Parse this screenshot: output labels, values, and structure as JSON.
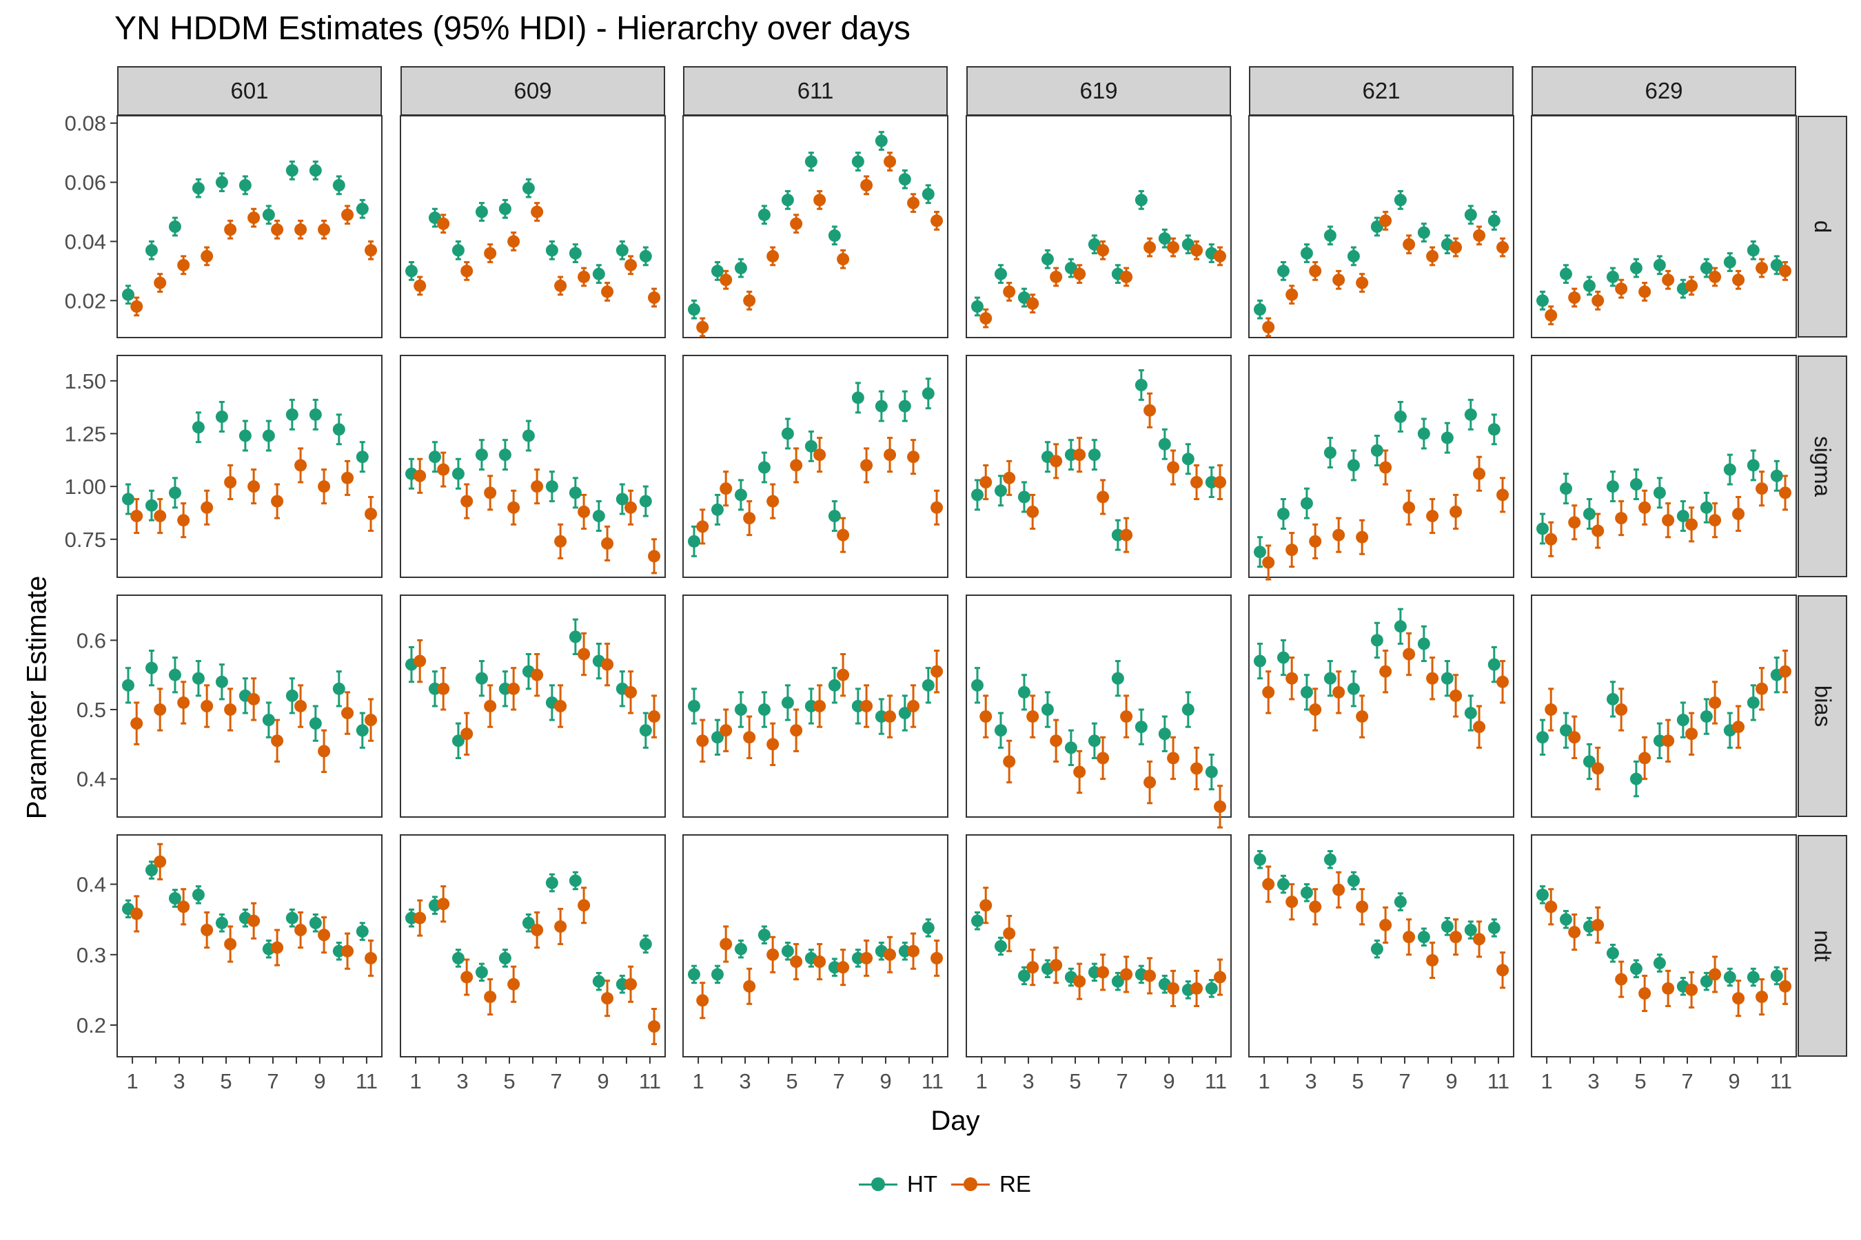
{
  "chart_data": {
    "type": "scatter",
    "title": "YN HDDM Estimates (95% HDI) - Hierarchy over days",
    "xlabel": "Day",
    "ylabel": "Parameter Estimate",
    "subjects": [
      "601",
      "609",
      "611",
      "619",
      "621",
      "629"
    ],
    "parameters": [
      "d",
      "sigma",
      "bias",
      "ndt"
    ],
    "x": [
      1,
      2,
      3,
      4,
      5,
      6,
      7,
      8,
      9,
      10,
      11
    ],
    "x_ticks": [
      1,
      3,
      5,
      7,
      9,
      11
    ],
    "x_range": [
      0.35,
      11.65
    ],
    "y_ranges": {
      "d": [
        0.0075,
        0.0825
      ],
      "sigma": [
        0.57,
        1.62
      ],
      "bias": [
        0.345,
        0.665
      ],
      "ndt": [
        0.155,
        0.47
      ]
    },
    "y_ticks": {
      "d": [
        "0.02",
        "0.04",
        "0.06",
        "0.08"
      ],
      "sigma": [
        "0.75",
        "1.00",
        "1.25",
        "1.50"
      ],
      "bias": [
        "0.4",
        "0.5",
        "0.6"
      ],
      "ndt": [
        "0.2",
        "0.3",
        "0.4"
      ]
    },
    "errorbar_halfwidth": {
      "d": [
        0.003,
        0.003
      ],
      "sigma": [
        0.07,
        0.08
      ],
      "bias": [
        0.025,
        0.03
      ],
      "ndt": [
        0.012,
        0.025
      ]
    },
    "grid": false,
    "legend_position": "bottom",
    "series": [
      {
        "name": "HT",
        "color": "#1b9e77",
        "values": {
          "601": {
            "d": [
              0.022,
              0.037,
              0.045,
              0.058,
              0.06,
              0.059,
              0.049,
              0.064,
              0.064,
              0.059,
              0.051
            ],
            "sigma": [
              0.94,
              0.91,
              0.97,
              1.28,
              1.33,
              1.24,
              1.24,
              1.34,
              1.34,
              1.27,
              1.14
            ],
            "bias": [
              0.535,
              0.56,
              0.55,
              0.545,
              0.54,
              0.52,
              0.485,
              0.52,
              0.48,
              0.53,
              0.47
            ],
            "ndt": [
              0.365,
              0.42,
              0.38,
              0.385,
              0.345,
              0.352,
              0.308,
              0.352,
              0.345,
              0.305,
              0.333
            ]
          },
          "609": {
            "d": [
              0.03,
              0.048,
              0.037,
              0.05,
              0.051,
              0.058,
              0.037,
              0.036,
              0.029,
              0.037,
              0.035
            ],
            "sigma": [
              1.06,
              1.14,
              1.06,
              1.15,
              1.15,
              1.24,
              1.0,
              0.97,
              0.86,
              0.94,
              0.93
            ],
            "bias": [
              0.565,
              0.53,
              0.455,
              0.545,
              0.53,
              0.555,
              0.51,
              0.605,
              0.57,
              0.53,
              0.47
            ],
            "ndt": [
              0.352,
              0.37,
              0.295,
              0.275,
              0.295,
              0.345,
              0.402,
              0.405,
              0.262,
              0.258,
              0.315
            ]
          },
          "611": {
            "d": [
              0.017,
              0.03,
              0.031,
              0.049,
              0.054,
              0.067,
              0.042,
              0.067,
              0.074,
              0.061,
              0.056
            ],
            "sigma": [
              0.74,
              0.89,
              0.96,
              1.09,
              1.25,
              1.19,
              0.86,
              1.42,
              1.38,
              1.38,
              1.44
            ],
            "bias": [
              0.505,
              0.46,
              0.5,
              0.5,
              0.51,
              0.505,
              0.535,
              0.505,
              0.49,
              0.495,
              0.535
            ],
            "ndt": [
              0.272,
              0.272,
              0.308,
              0.328,
              0.305,
              0.295,
              0.282,
              0.295,
              0.305,
              0.305,
              0.338
            ]
          },
          "619": {
            "d": [
              0.018,
              0.029,
              0.021,
              0.034,
              0.031,
              0.039,
              0.029,
              0.054,
              0.041,
              0.039,
              0.036
            ],
            "sigma": [
              0.96,
              0.98,
              0.95,
              1.14,
              1.15,
              1.15,
              0.77,
              1.48,
              1.2,
              1.13,
              1.02
            ],
            "bias": [
              0.535,
              0.47,
              0.525,
              0.5,
              0.445,
              0.455,
              0.545,
              0.475,
              0.465,
              0.5,
              0.41
            ],
            "ndt": [
              0.348,
              0.312,
              0.27,
              0.28,
              0.268,
              0.275,
              0.262,
              0.272,
              0.258,
              0.25,
              0.252
            ]
          },
          "621": {
            "d": [
              0.017,
              0.03,
              0.036,
              0.042,
              0.035,
              0.045,
              0.054,
              0.043,
              0.039,
              0.049,
              0.047
            ],
            "sigma": [
              0.69,
              0.87,
              0.92,
              1.16,
              1.1,
              1.17,
              1.33,
              1.25,
              1.23,
              1.34,
              1.27
            ],
            "bias": [
              0.57,
              0.575,
              0.525,
              0.545,
              0.53,
              0.6,
              0.62,
              0.595,
              0.545,
              0.495,
              0.565
            ],
            "ndt": [
              0.435,
              0.4,
              0.388,
              0.435,
              0.405,
              0.308,
              0.375,
              0.325,
              0.34,
              0.335,
              0.338
            ]
          },
          "629": {
            "d": [
              0.02,
              0.029,
              0.025,
              0.028,
              0.031,
              0.032,
              0.024,
              0.031,
              0.033,
              0.037,
              0.032
            ],
            "sigma": [
              0.8,
              0.99,
              0.87,
              1.0,
              1.01,
              0.97,
              0.86,
              0.9,
              1.08,
              1.1,
              1.05
            ],
            "bias": [
              0.46,
              0.47,
              0.425,
              0.515,
              0.4,
              0.455,
              0.485,
              0.49,
              0.47,
              0.51,
              0.55
            ],
            "ndt": [
              0.385,
              0.35,
              0.34,
              0.302,
              0.28,
              0.288,
              0.255,
              0.262,
              0.268,
              0.268,
              0.27
            ]
          }
        }
      },
      {
        "name": "RE",
        "color": "#d95f02",
        "values": {
          "601": {
            "d": [
              0.018,
              0.026,
              0.032,
              0.035,
              0.044,
              0.048,
              0.044,
              0.044,
              0.044,
              0.049,
              0.037
            ],
            "sigma": [
              0.86,
              0.86,
              0.84,
              0.9,
              1.02,
              1.0,
              0.93,
              1.1,
              1.0,
              1.04,
              0.87
            ],
            "bias": [
              0.48,
              0.5,
              0.51,
              0.505,
              0.5,
              0.515,
              0.455,
              0.505,
              0.44,
              0.495,
              0.485
            ],
            "ndt": [
              0.358,
              0.432,
              0.368,
              0.335,
              0.315,
              0.348,
              0.31,
              0.335,
              0.328,
              0.305,
              0.295
            ]
          },
          "609": {
            "d": [
              0.025,
              0.046,
              0.03,
              0.036,
              0.04,
              0.05,
              0.025,
              0.028,
              0.023,
              0.032,
              0.021
            ],
            "sigma": [
              1.05,
              1.08,
              0.93,
              0.97,
              0.9,
              1.0,
              0.74,
              0.88,
              0.73,
              0.9,
              0.67
            ],
            "bias": [
              0.57,
              0.53,
              0.465,
              0.505,
              0.53,
              0.55,
              0.505,
              0.58,
              0.565,
              0.525,
              0.49
            ],
            "ndt": [
              0.352,
              0.372,
              0.268,
              0.24,
              0.258,
              0.335,
              0.34,
              0.37,
              0.238,
              0.258,
              0.198
            ]
          },
          "611": {
            "d": [
              0.011,
              0.027,
              0.02,
              0.035,
              0.046,
              0.054,
              0.034,
              0.059,
              0.067,
              0.053,
              0.047
            ],
            "sigma": [
              0.81,
              0.99,
              0.85,
              0.93,
              1.1,
              1.15,
              0.77,
              1.1,
              1.15,
              1.14,
              0.9
            ],
            "bias": [
              0.455,
              0.47,
              0.46,
              0.45,
              0.47,
              0.505,
              0.55,
              0.505,
              0.49,
              0.505,
              0.555
            ],
            "ndt": [
              0.235,
              0.315,
              0.255,
              0.3,
              0.29,
              0.29,
              0.282,
              0.295,
              0.3,
              0.305,
              0.295
            ]
          },
          "619": {
            "d": [
              0.014,
              0.023,
              0.019,
              0.028,
              0.029,
              0.037,
              0.028,
              0.038,
              0.038,
              0.037,
              0.035
            ],
            "sigma": [
              1.02,
              1.04,
              0.88,
              1.12,
              1.15,
              0.95,
              0.77,
              1.36,
              1.09,
              1.02,
              1.02
            ],
            "bias": [
              0.49,
              0.425,
              0.49,
              0.455,
              0.41,
              0.43,
              0.49,
              0.395,
              0.43,
              0.415,
              0.36
            ],
            "ndt": [
              0.37,
              0.33,
              0.282,
              0.285,
              0.262,
              0.275,
              0.272,
              0.27,
              0.252,
              0.252,
              0.268
            ]
          },
          "621": {
            "d": [
              0.011,
              0.022,
              0.03,
              0.027,
              0.026,
              0.047,
              0.039,
              0.035,
              0.038,
              0.042,
              0.038
            ],
            "sigma": [
              0.64,
              0.7,
              0.74,
              0.77,
              0.76,
              1.09,
              0.9,
              0.86,
              0.88,
              1.06,
              0.96
            ],
            "bias": [
              0.525,
              0.545,
              0.5,
              0.525,
              0.49,
              0.555,
              0.58,
              0.545,
              0.52,
              0.475,
              0.54
            ],
            "ndt": [
              0.4,
              0.375,
              0.368,
              0.392,
              0.368,
              0.342,
              0.325,
              0.292,
              0.325,
              0.322,
              0.278
            ]
          },
          "629": {
            "d": [
              0.015,
              0.021,
              0.02,
              0.024,
              0.023,
              0.027,
              0.025,
              0.028,
              0.027,
              0.031,
              0.03
            ],
            "sigma": [
              0.75,
              0.83,
              0.79,
              0.85,
              0.9,
              0.84,
              0.82,
              0.84,
              0.87,
              0.99,
              0.97
            ],
            "bias": [
              0.5,
              0.46,
              0.415,
              0.5,
              0.43,
              0.455,
              0.465,
              0.51,
              0.475,
              0.53,
              0.555
            ],
            "ndt": [
              0.368,
              0.332,
              0.342,
              0.265,
              0.245,
              0.252,
              0.25,
              0.272,
              0.238,
              0.24,
              0.255
            ]
          }
        }
      }
    ]
  }
}
